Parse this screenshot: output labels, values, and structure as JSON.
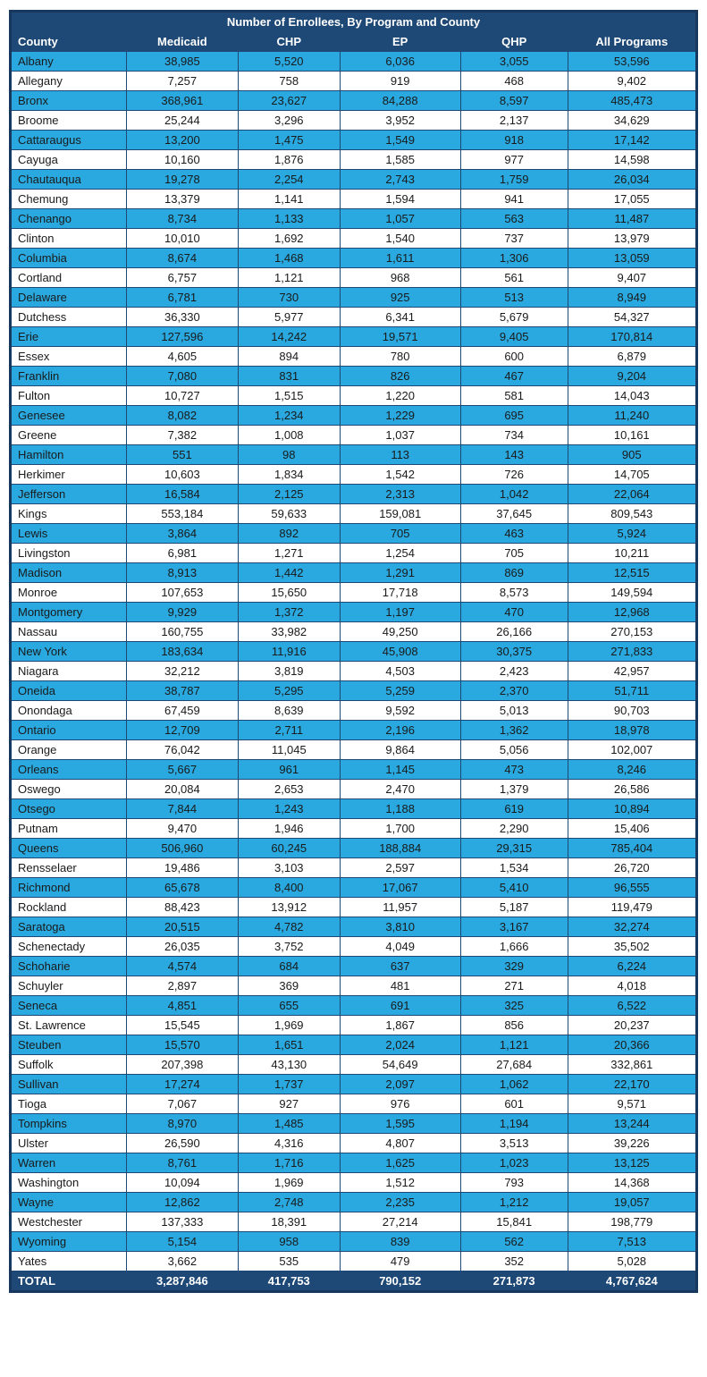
{
  "table": {
    "title": "Number of Enrollees, By Program and County",
    "columns": [
      "County",
      "Medicaid",
      "CHP",
      "EP",
      "QHP",
      "All Programs"
    ],
    "rows": [
      [
        "Albany",
        "38,985",
        "5,520",
        "6,036",
        "3,055",
        "53,596"
      ],
      [
        "Allegany",
        "7,257",
        "758",
        "919",
        "468",
        "9,402"
      ],
      [
        "Bronx",
        "368,961",
        "23,627",
        "84,288",
        "8,597",
        "485,473"
      ],
      [
        "Broome",
        "25,244",
        "3,296",
        "3,952",
        "2,137",
        "34,629"
      ],
      [
        "Cattaraugus",
        "13,200",
        "1,475",
        "1,549",
        "918",
        "17,142"
      ],
      [
        "Cayuga",
        "10,160",
        "1,876",
        "1,585",
        "977",
        "14,598"
      ],
      [
        "Chautauqua",
        "19,278",
        "2,254",
        "2,743",
        "1,759",
        "26,034"
      ],
      [
        "Chemung",
        "13,379",
        "1,141",
        "1,594",
        "941",
        "17,055"
      ],
      [
        "Chenango",
        "8,734",
        "1,133",
        "1,057",
        "563",
        "11,487"
      ],
      [
        "Clinton",
        "10,010",
        "1,692",
        "1,540",
        "737",
        "13,979"
      ],
      [
        "Columbia",
        "8,674",
        "1,468",
        "1,611",
        "1,306",
        "13,059"
      ],
      [
        "Cortland",
        "6,757",
        "1,121",
        "968",
        "561",
        "9,407"
      ],
      [
        "Delaware",
        "6,781",
        "730",
        "925",
        "513",
        "8,949"
      ],
      [
        "Dutchess",
        "36,330",
        "5,977",
        "6,341",
        "5,679",
        "54,327"
      ],
      [
        "Erie",
        "127,596",
        "14,242",
        "19,571",
        "9,405",
        "170,814"
      ],
      [
        "Essex",
        "4,605",
        "894",
        "780",
        "600",
        "6,879"
      ],
      [
        "Franklin",
        "7,080",
        "831",
        "826",
        "467",
        "9,204"
      ],
      [
        "Fulton",
        "10,727",
        "1,515",
        "1,220",
        "581",
        "14,043"
      ],
      [
        "Genesee",
        "8,082",
        "1,234",
        "1,229",
        "695",
        "11,240"
      ],
      [
        "Greene",
        "7,382",
        "1,008",
        "1,037",
        "734",
        "10,161"
      ],
      [
        "Hamilton",
        "551",
        "98",
        "113",
        "143",
        "905"
      ],
      [
        "Herkimer",
        "10,603",
        "1,834",
        "1,542",
        "726",
        "14,705"
      ],
      [
        "Jefferson",
        "16,584",
        "2,125",
        "2,313",
        "1,042",
        "22,064"
      ],
      [
        "Kings",
        "553,184",
        "59,633",
        "159,081",
        "37,645",
        "809,543"
      ],
      [
        "Lewis",
        "3,864",
        "892",
        "705",
        "463",
        "5,924"
      ],
      [
        "Livingston",
        "6,981",
        "1,271",
        "1,254",
        "705",
        "10,211"
      ],
      [
        "Madison",
        "8,913",
        "1,442",
        "1,291",
        "869",
        "12,515"
      ],
      [
        "Monroe",
        "107,653",
        "15,650",
        "17,718",
        "8,573",
        "149,594"
      ],
      [
        "Montgomery",
        "9,929",
        "1,372",
        "1,197",
        "470",
        "12,968"
      ],
      [
        "Nassau",
        "160,755",
        "33,982",
        "49,250",
        "26,166",
        "270,153"
      ],
      [
        "New York",
        "183,634",
        "11,916",
        "45,908",
        "30,375",
        "271,833"
      ],
      [
        "Niagara",
        "32,212",
        "3,819",
        "4,503",
        "2,423",
        "42,957"
      ],
      [
        "Oneida",
        "38,787",
        "5,295",
        "5,259",
        "2,370",
        "51,711"
      ],
      [
        "Onondaga",
        "67,459",
        "8,639",
        "9,592",
        "5,013",
        "90,703"
      ],
      [
        "Ontario",
        "12,709",
        "2,711",
        "2,196",
        "1,362",
        "18,978"
      ],
      [
        "Orange",
        "76,042",
        "11,045",
        "9,864",
        "5,056",
        "102,007"
      ],
      [
        "Orleans",
        "5,667",
        "961",
        "1,145",
        "473",
        "8,246"
      ],
      [
        "Oswego",
        "20,084",
        "2,653",
        "2,470",
        "1,379",
        "26,586"
      ],
      [
        "Otsego",
        "7,844",
        "1,243",
        "1,188",
        "619",
        "10,894"
      ],
      [
        "Putnam",
        "9,470",
        "1,946",
        "1,700",
        "2,290",
        "15,406"
      ],
      [
        "Queens",
        "506,960",
        "60,245",
        "188,884",
        "29,315",
        "785,404"
      ],
      [
        "Rensselaer",
        "19,486",
        "3,103",
        "2,597",
        "1,534",
        "26,720"
      ],
      [
        "Richmond",
        "65,678",
        "8,400",
        "17,067",
        "5,410",
        "96,555"
      ],
      [
        "Rockland",
        "88,423",
        "13,912",
        "11,957",
        "5,187",
        "119,479"
      ],
      [
        "Saratoga",
        "20,515",
        "4,782",
        "3,810",
        "3,167",
        "32,274"
      ],
      [
        "Schenectady",
        "26,035",
        "3,752",
        "4,049",
        "1,666",
        "35,502"
      ],
      [
        "Schoharie",
        "4,574",
        "684",
        "637",
        "329",
        "6,224"
      ],
      [
        "Schuyler",
        "2,897",
        "369",
        "481",
        "271",
        "4,018"
      ],
      [
        "Seneca",
        "4,851",
        "655",
        "691",
        "325",
        "6,522"
      ],
      [
        "St. Lawrence",
        "15,545",
        "1,969",
        "1,867",
        "856",
        "20,237"
      ],
      [
        "Steuben",
        "15,570",
        "1,651",
        "2,024",
        "1,121",
        "20,366"
      ],
      [
        "Suffolk",
        "207,398",
        "43,130",
        "54,649",
        "27,684",
        "332,861"
      ],
      [
        "Sullivan",
        "17,274",
        "1,737",
        "2,097",
        "1,062",
        "22,170"
      ],
      [
        "Tioga",
        "7,067",
        "927",
        "976",
        "601",
        "9,571"
      ],
      [
        "Tompkins",
        "8,970",
        "1,485",
        "1,595",
        "1,194",
        "13,244"
      ],
      [
        "Ulster",
        "26,590",
        "4,316",
        "4,807",
        "3,513",
        "39,226"
      ],
      [
        "Warren",
        "8,761",
        "1,716",
        "1,625",
        "1,023",
        "13,125"
      ],
      [
        "Washington",
        "10,094",
        "1,969",
        "1,512",
        "793",
        "14,368"
      ],
      [
        "Wayne",
        "12,862",
        "2,748",
        "2,235",
        "1,212",
        "19,057"
      ],
      [
        "Westchester",
        "137,333",
        "18,391",
        "27,214",
        "15,841",
        "198,779"
      ],
      [
        "Wyoming",
        "5,154",
        "958",
        "839",
        "562",
        "7,513"
      ],
      [
        "Yates",
        "3,662",
        "535",
        "479",
        "352",
        "5,028"
      ]
    ],
    "total": [
      "TOTAL",
      "3,287,846",
      "417,753",
      "790,152",
      "271,873",
      "4,767,624"
    ],
    "colors": {
      "header_bg": "#1e4976",
      "alt_row_bg": "#29a9e0",
      "row_bg": "#ffffff",
      "border": "#1e4976",
      "header_text": "#ffffff",
      "body_text": "#1a1a1a"
    }
  }
}
